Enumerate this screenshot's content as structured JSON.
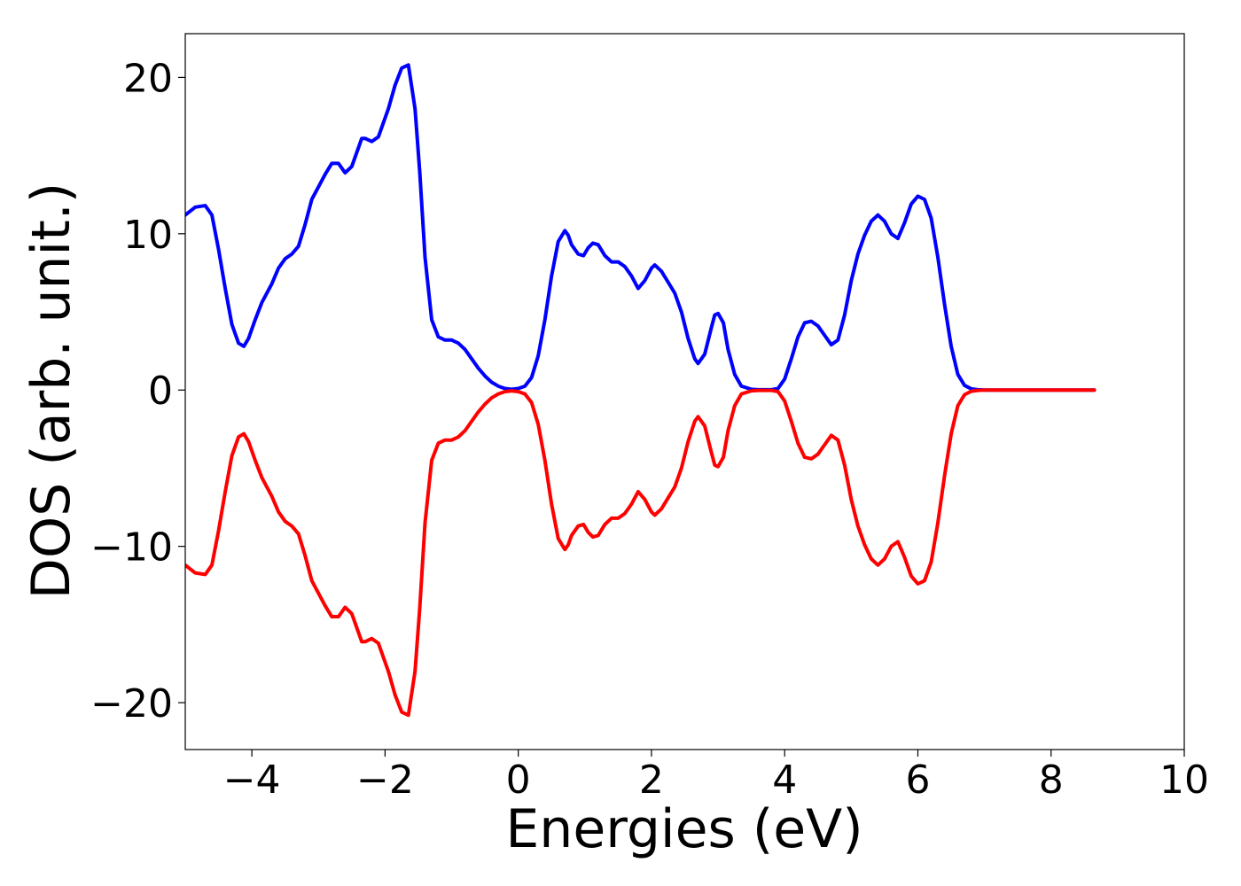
{
  "chart_data": {
    "type": "line",
    "xlabel": "Energies (eV)",
    "ylabel": "DOS (arb. unit.)",
    "xlim": [
      -5,
      10
    ],
    "ylim": [
      -23,
      22.8
    ],
    "grid": false,
    "xticks": [
      -4,
      -2,
      0,
      2,
      4,
      6,
      8,
      10
    ],
    "xtick_labels": [
      "−4",
      "−2",
      "0",
      "2",
      "4",
      "6",
      "8",
      "10"
    ],
    "yticks": [
      -20,
      -10,
      0,
      10,
      20
    ],
    "ytick_labels": [
      "−20",
      "−10",
      "0",
      "10",
      "20"
    ],
    "series": [
      {
        "color": "#0000ff",
        "x": [
          -5.0,
          -4.85,
          -4.7,
          -4.6,
          -4.5,
          -4.4,
          -4.3,
          -4.2,
          -4.12,
          -4.05,
          -3.95,
          -3.85,
          -3.7,
          -3.6,
          -3.5,
          -3.4,
          -3.3,
          -3.2,
          -3.1,
          -3.0,
          -2.9,
          -2.8,
          -2.7,
          -2.6,
          -2.5,
          -2.4,
          -2.35,
          -2.3,
          -2.2,
          -2.1,
          -2.05,
          -1.95,
          -1.85,
          -1.75,
          -1.65,
          -1.55,
          -1.48,
          -1.4,
          -1.3,
          -1.2,
          -1.1,
          -1.0,
          -0.9,
          -0.8,
          -0.7,
          -0.6,
          -0.5,
          -0.4,
          -0.3,
          -0.2,
          -0.1,
          0.0,
          0.1,
          0.2,
          0.3,
          0.4,
          0.5,
          0.6,
          0.7,
          0.75,
          0.8,
          0.9,
          0.98,
          1.05,
          1.12,
          1.2,
          1.3,
          1.4,
          1.5,
          1.6,
          1.7,
          1.8,
          1.9,
          2.0,
          2.05,
          2.15,
          2.25,
          2.35,
          2.45,
          2.55,
          2.65,
          2.7,
          2.8,
          2.9,
          2.95,
          3.0,
          3.08,
          3.15,
          3.25,
          3.35,
          3.5,
          3.6,
          3.8,
          3.9,
          4.0,
          4.1,
          4.2,
          4.3,
          4.4,
          4.5,
          4.6,
          4.7,
          4.8,
          4.9,
          5.0,
          5.1,
          5.2,
          5.3,
          5.4,
          5.5,
          5.6,
          5.7,
          5.8,
          5.9,
          6.0,
          6.1,
          6.2,
          6.3,
          6.4,
          6.5,
          6.6,
          6.7,
          6.8,
          6.9,
          7.0,
          7.5,
          8.0,
          8.65
        ],
        "y": [
          11.2,
          11.7,
          11.8,
          11.2,
          9.0,
          6.5,
          4.2,
          3.0,
          2.8,
          3.3,
          4.5,
          5.6,
          6.8,
          7.8,
          8.4,
          8.7,
          9.2,
          10.6,
          12.2,
          13.0,
          13.8,
          14.5,
          14.5,
          13.9,
          14.3,
          15.5,
          16.1,
          16.1,
          15.9,
          16.2,
          16.8,
          18.0,
          19.5,
          20.6,
          20.8,
          18.0,
          14.0,
          8.5,
          4.5,
          3.4,
          3.2,
          3.2,
          3.0,
          2.6,
          2.0,
          1.4,
          0.9,
          0.5,
          0.25,
          0.1,
          0.05,
          0.1,
          0.25,
          0.8,
          2.2,
          4.5,
          7.3,
          9.5,
          10.2,
          9.9,
          9.3,
          8.7,
          8.6,
          9.1,
          9.4,
          9.3,
          8.6,
          8.2,
          8.2,
          7.9,
          7.3,
          6.5,
          7.0,
          7.8,
          8.0,
          7.6,
          6.9,
          6.2,
          5.0,
          3.3,
          2.0,
          1.7,
          2.3,
          4.0,
          4.8,
          4.9,
          4.3,
          2.6,
          1.0,
          0.25,
          0.05,
          0.02,
          0.02,
          0.1,
          0.7,
          2.0,
          3.4,
          4.3,
          4.4,
          4.1,
          3.5,
          2.9,
          3.2,
          4.8,
          7.0,
          8.7,
          9.9,
          10.8,
          11.2,
          10.8,
          10.0,
          9.7,
          10.7,
          11.9,
          12.4,
          12.2,
          11.0,
          8.5,
          5.5,
          2.8,
          1.0,
          0.3,
          0.08,
          0.02,
          0.0,
          0.0,
          0.0,
          0.0
        ]
      },
      {
        "color": "#ff0000",
        "x": [
          -5.0,
          -4.85,
          -4.7,
          -4.6,
          -4.5,
          -4.4,
          -4.3,
          -4.2,
          -4.12,
          -4.05,
          -3.95,
          -3.85,
          -3.7,
          -3.6,
          -3.5,
          -3.4,
          -3.3,
          -3.2,
          -3.1,
          -3.0,
          -2.9,
          -2.8,
          -2.7,
          -2.6,
          -2.5,
          -2.4,
          -2.35,
          -2.3,
          -2.2,
          -2.1,
          -2.05,
          -1.95,
          -1.85,
          -1.75,
          -1.65,
          -1.55,
          -1.48,
          -1.4,
          -1.3,
          -1.2,
          -1.1,
          -1.0,
          -0.9,
          -0.8,
          -0.7,
          -0.6,
          -0.5,
          -0.4,
          -0.3,
          -0.2,
          -0.1,
          0.0,
          0.1,
          0.2,
          0.3,
          0.4,
          0.5,
          0.6,
          0.7,
          0.75,
          0.8,
          0.9,
          0.98,
          1.05,
          1.12,
          1.2,
          1.3,
          1.4,
          1.5,
          1.6,
          1.7,
          1.8,
          1.9,
          2.0,
          2.05,
          2.15,
          2.25,
          2.35,
          2.45,
          2.55,
          2.65,
          2.7,
          2.8,
          2.9,
          2.95,
          3.0,
          3.08,
          3.15,
          3.25,
          3.35,
          3.5,
          3.6,
          3.8,
          3.9,
          4.0,
          4.1,
          4.2,
          4.3,
          4.4,
          4.5,
          4.6,
          4.7,
          4.8,
          4.9,
          5.0,
          5.1,
          5.2,
          5.3,
          5.4,
          5.5,
          5.6,
          5.7,
          5.8,
          5.9,
          6.0,
          6.1,
          6.2,
          6.3,
          6.4,
          6.5,
          6.6,
          6.7,
          6.8,
          6.9,
          7.0,
          7.5,
          8.0,
          8.65
        ],
        "y": [
          -11.2,
          -11.7,
          -11.8,
          -11.2,
          -9.0,
          -6.5,
          -4.2,
          -3.0,
          -2.8,
          -3.3,
          -4.5,
          -5.6,
          -6.8,
          -7.8,
          -8.4,
          -8.7,
          -9.2,
          -10.6,
          -12.2,
          -13.0,
          -13.8,
          -14.5,
          -14.5,
          -13.9,
          -14.3,
          -15.5,
          -16.1,
          -16.1,
          -15.9,
          -16.2,
          -16.8,
          -18.0,
          -19.5,
          -20.6,
          -20.8,
          -18.0,
          -14.0,
          -8.5,
          -4.5,
          -3.4,
          -3.2,
          -3.2,
          -3.0,
          -2.6,
          -2.0,
          -1.4,
          -0.9,
          -0.5,
          -0.25,
          -0.1,
          -0.05,
          -0.1,
          -0.25,
          -0.8,
          -2.2,
          -4.5,
          -7.3,
          -9.5,
          -10.2,
          -9.9,
          -9.3,
          -8.7,
          -8.6,
          -9.1,
          -9.4,
          -9.3,
          -8.6,
          -8.2,
          -8.2,
          -7.9,
          -7.3,
          -6.5,
          -7.0,
          -7.8,
          -8.0,
          -7.6,
          -6.9,
          -6.2,
          -5.0,
          -3.3,
          -2.0,
          -1.7,
          -2.3,
          -4.0,
          -4.8,
          -4.9,
          -4.3,
          -2.6,
          -1.0,
          -0.25,
          -0.05,
          -0.02,
          -0.02,
          -0.1,
          -0.7,
          -2.0,
          -3.4,
          -4.3,
          -4.4,
          -4.1,
          -3.5,
          -2.9,
          -3.2,
          -4.8,
          -7.0,
          -8.7,
          -9.9,
          -10.8,
          -11.2,
          -10.8,
          -10.0,
          -9.7,
          -10.7,
          -11.9,
          -12.4,
          -12.2,
          -11.0,
          -8.5,
          -5.5,
          -2.8,
          -1.0,
          -0.3,
          -0.08,
          -0.02,
          0.0,
          0.0,
          0.0,
          0.0
        ]
      }
    ]
  }
}
